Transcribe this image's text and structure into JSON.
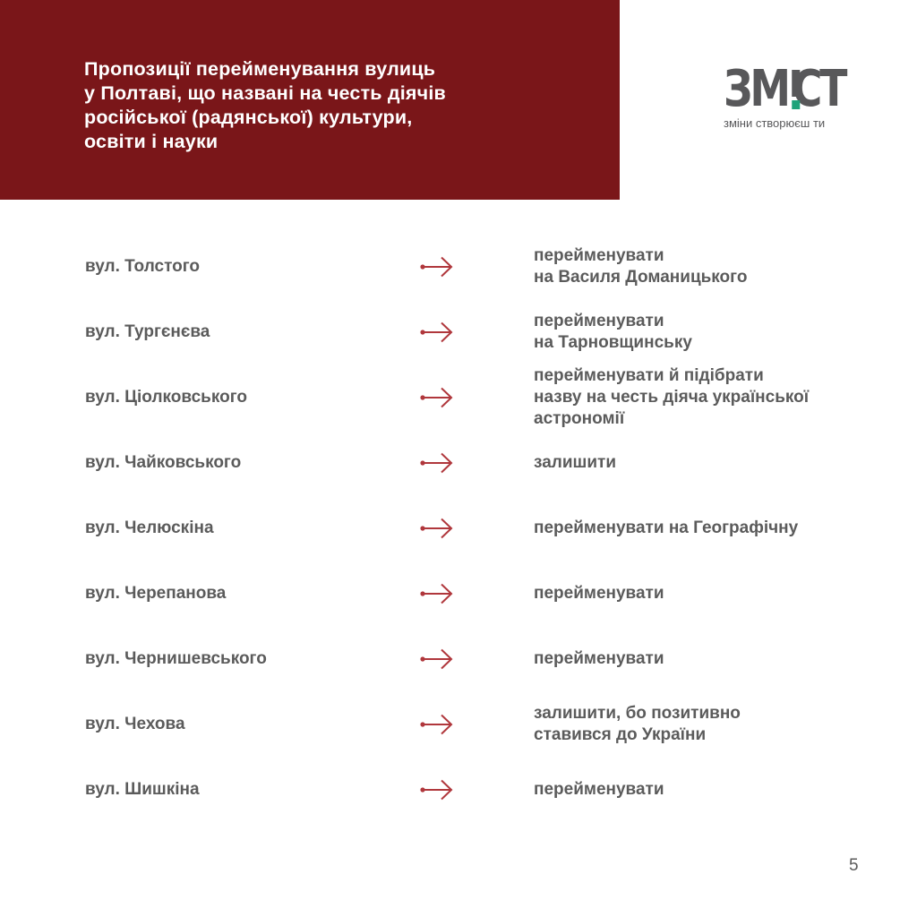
{
  "header": {
    "title": "Пропозиції перейменування вулиць\nу Полтаві, що названі на честь діячів\nросійської (радянської) культури,\nосвіти і науки",
    "background_color": "#7a1619"
  },
  "logo": {
    "word_left": "ЗМ",
    "word_right": "СТ",
    "tagline": "зміни створюєш ти",
    "accent_color": "#1fa37a"
  },
  "arrow_icon": "long-right-arrow",
  "arrow_color": "#b0373c",
  "rows": [
    {
      "street": "вул. Толстого",
      "action": "перейменувати\nна Василя Доманицького"
    },
    {
      "street": "вул. Тургєнєва",
      "action": "перейменувати\nна Тарновщинську"
    },
    {
      "street": "вул. Ціолковського",
      "action": "перейменувати й підібрати\nназву на честь діяча української\nастрономії"
    },
    {
      "street": "вул. Чайковського",
      "action": "залишити"
    },
    {
      "street": "вул. Челюскіна",
      "action": "перейменувати на Географічну"
    },
    {
      "street": "вул. Черепанова",
      "action": "перейменувати"
    },
    {
      "street": "вул. Чернишевського",
      "action": "перейменувати"
    },
    {
      "street": "вул. Чехова",
      "action": "залишити, бо позитивно\nставився до України"
    },
    {
      "street": "вул. Шишкіна",
      "action": "перейменувати"
    }
  ],
  "page_number": "5"
}
